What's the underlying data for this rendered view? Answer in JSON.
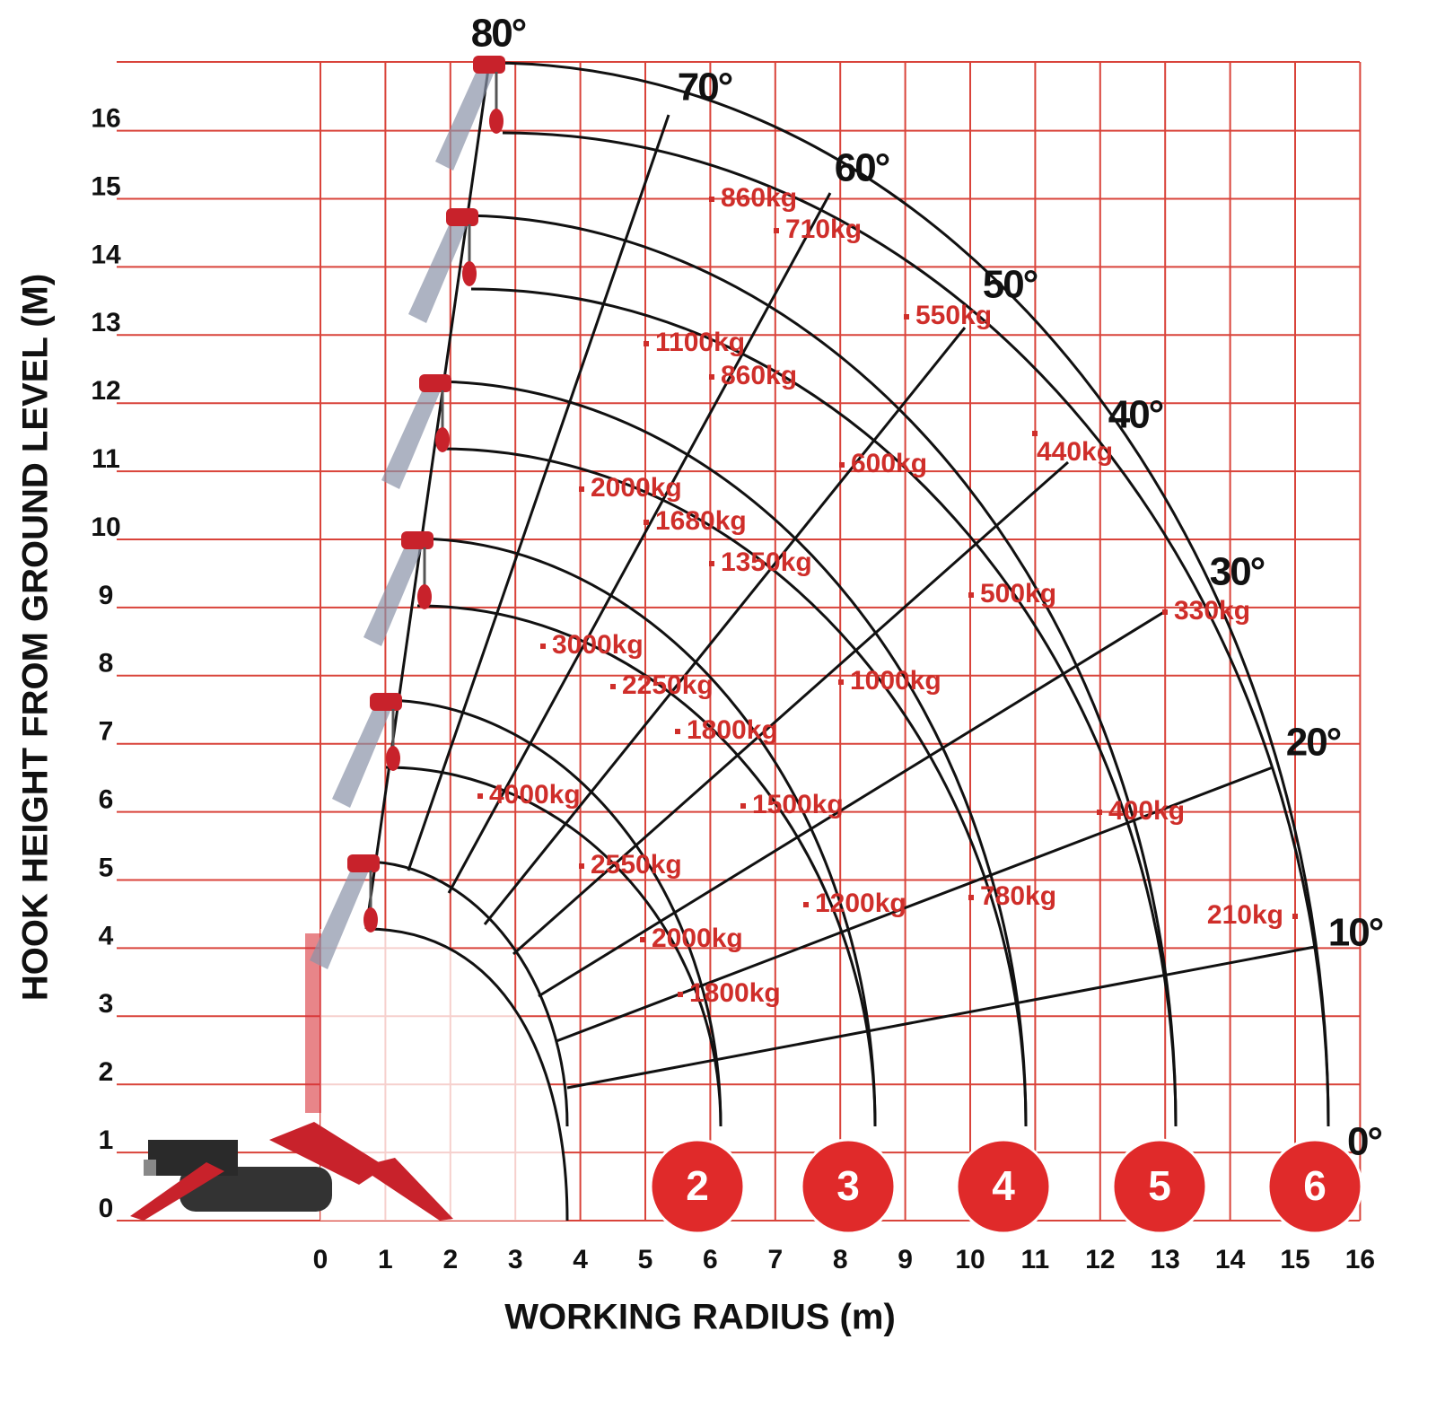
{
  "y_axis_title": "HOOK HEIGHT FROM GROUND LEVEL (M)",
  "x_axis_title": "WORKING RADIUS (m)",
  "x_ticks": [
    0,
    1,
    2,
    3,
    4,
    5,
    6,
    7,
    8,
    9,
    10,
    11,
    12,
    13,
    14,
    15,
    16
  ],
  "y_ticks": [
    0,
    1,
    2,
    3,
    4,
    5,
    6,
    7,
    8,
    9,
    10,
    11,
    12,
    13,
    14,
    15,
    16
  ],
  "angles": [
    "80°",
    "70°",
    "60°",
    "50°",
    "40°",
    "30°",
    "20°",
    "10°",
    "0°"
  ],
  "loads": [
    "860kg",
    "710kg",
    "550kg",
    "1100kg",
    "860kg",
    "440kg",
    "600kg",
    "2000kg",
    "1680kg",
    "1350kg",
    "500kg",
    "330kg",
    "3000kg",
    "2250kg",
    "1000kg",
    "1800kg",
    "4000kg",
    "1500kg",
    "400kg",
    "2550kg",
    "1200kg",
    "780kg",
    "210kg",
    "2000kg",
    "1800kg"
  ],
  "sections": [
    "2",
    "3",
    "4",
    "5",
    "6"
  ]
}
